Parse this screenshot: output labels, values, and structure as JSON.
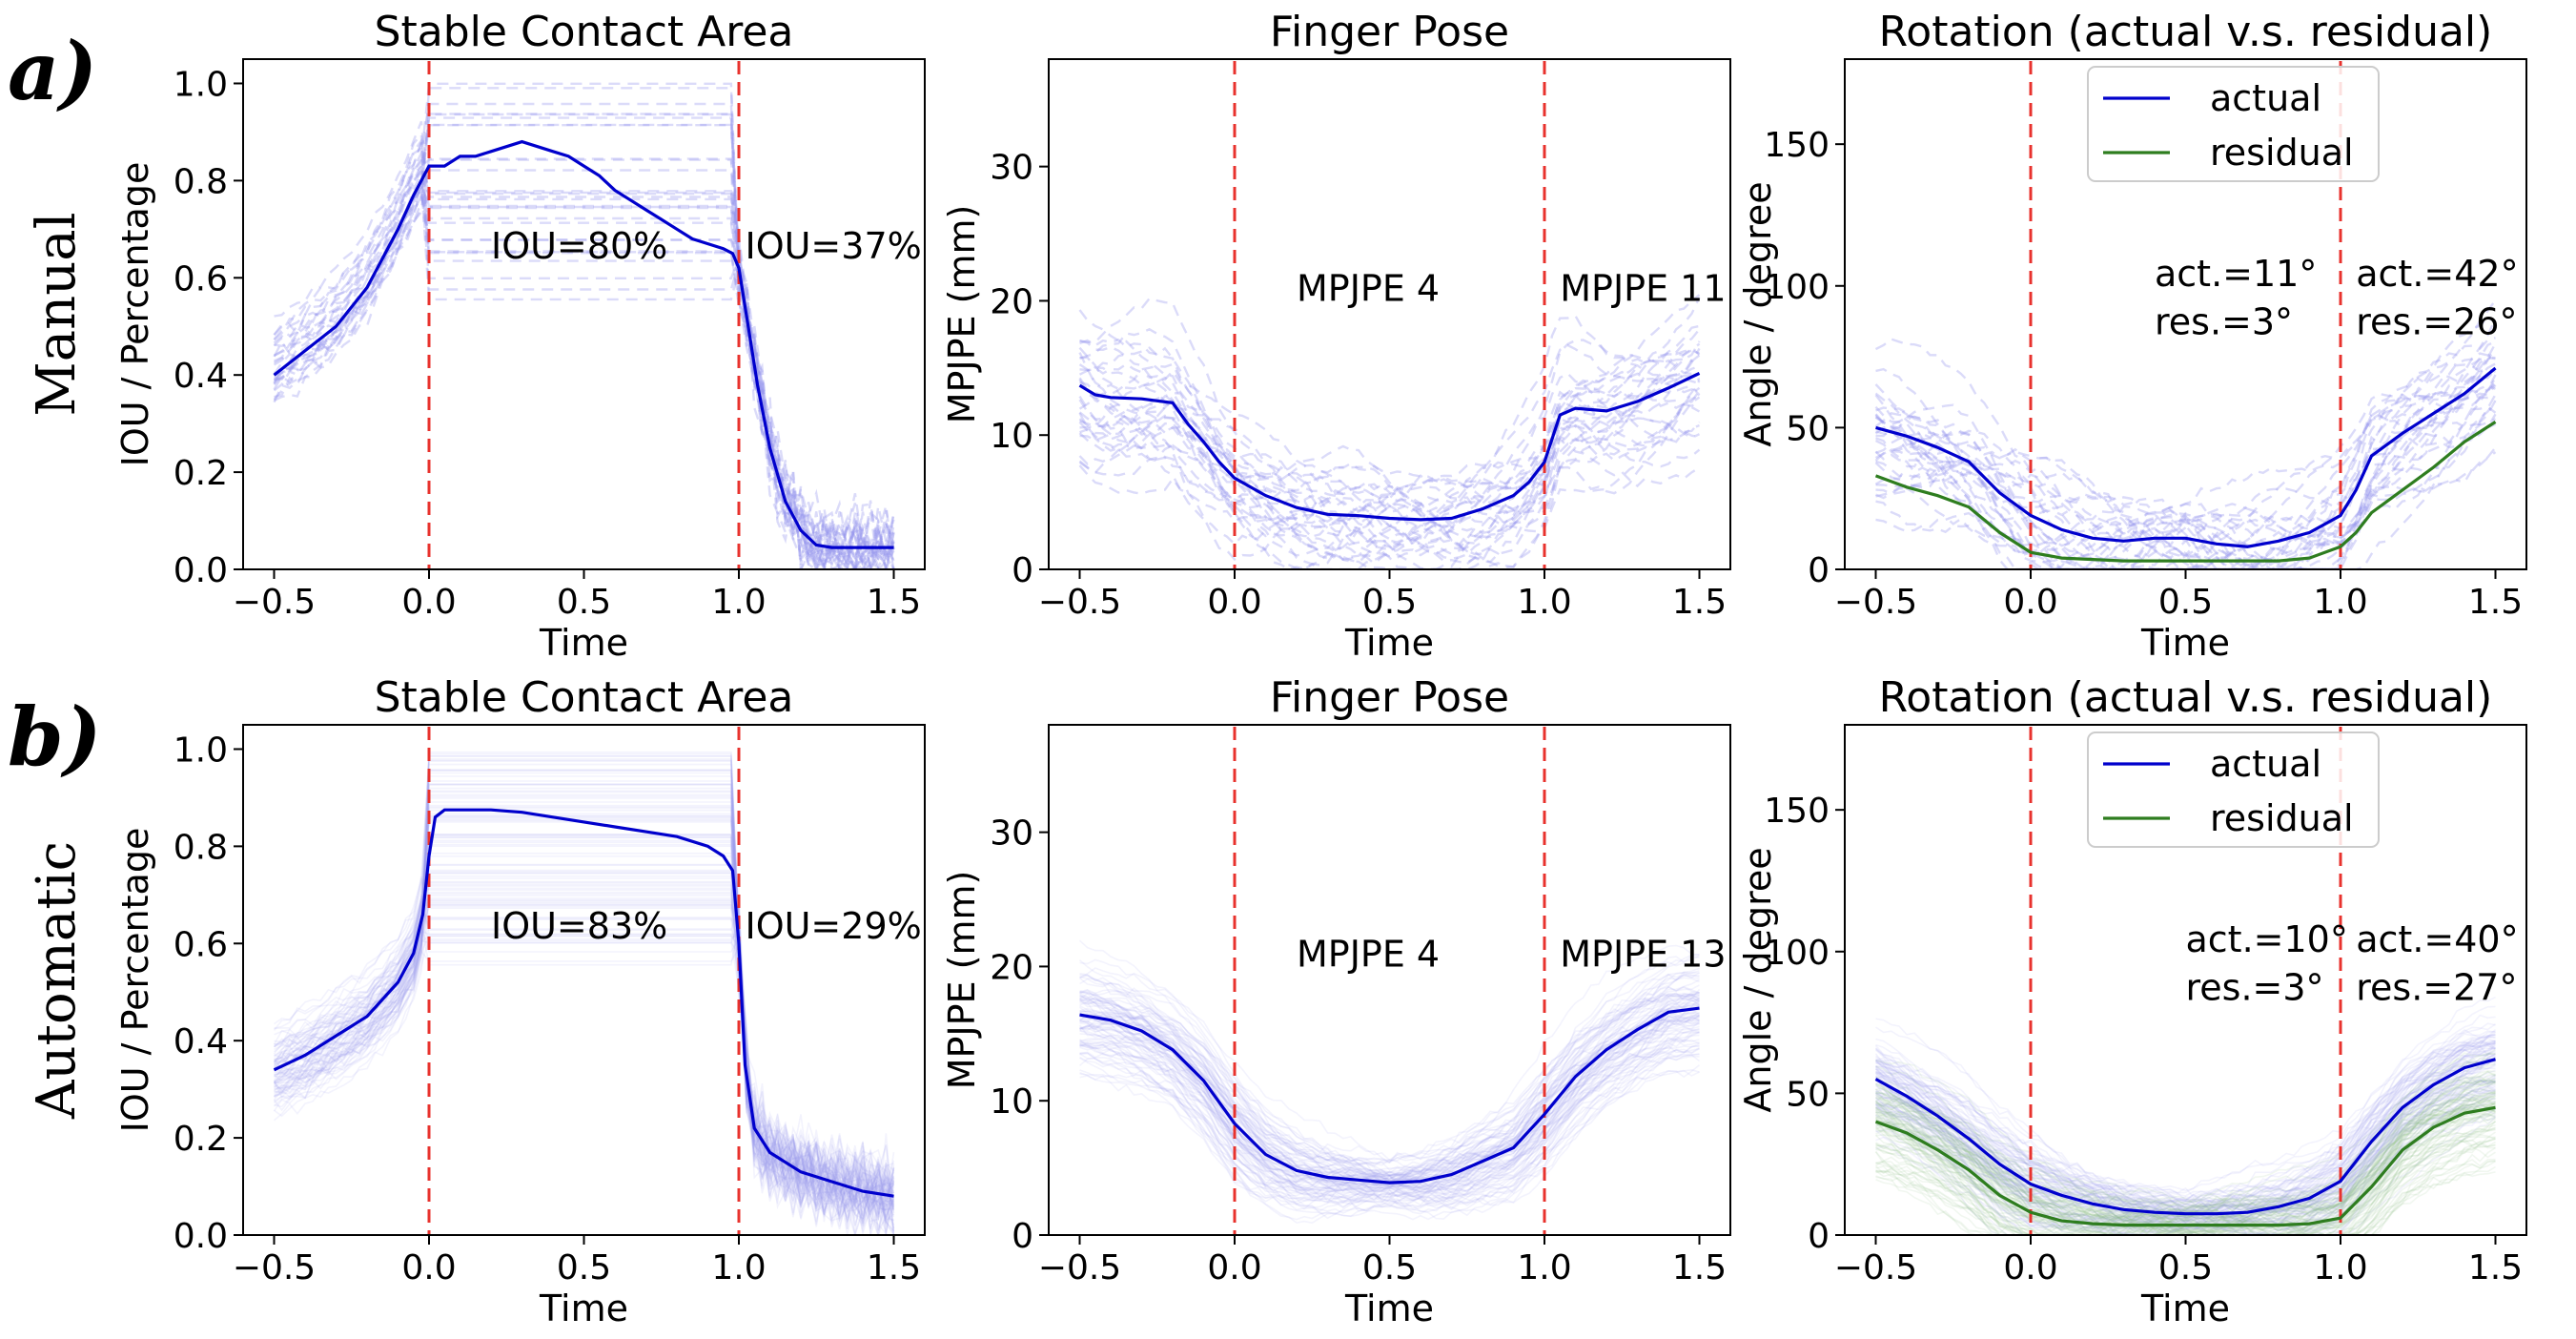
{
  "rows": [
    {
      "letter": "a)",
      "name": "Manual"
    },
    {
      "letter": "b)",
      "name": "Automatic"
    }
  ],
  "colors": {
    "actual": "#0000cc",
    "residual": "#2e7d1f",
    "event_line": "#e8322d",
    "trials_blue": "#9999ee",
    "trials_green": "#8fbf80"
  },
  "chart_data": [
    {
      "id": "a-contact",
      "type": "line",
      "row": 0,
      "col": 0,
      "title": "Stable Contact Area",
      "xlabel": "Time",
      "ylabel": "IOU / Percentage",
      "xlim": [
        -0.6,
        1.6
      ],
      "ylim": [
        0,
        1.05
      ],
      "xticks": [
        -0.5,
        0.0,
        0.5,
        1.0,
        1.5
      ],
      "xticklabels": [
        "−0.5",
        "0.0",
        "0.5",
        "1.0",
        "1.5"
      ],
      "yticks": [
        0,
        0.2,
        0.4,
        0.6,
        0.8,
        1.0
      ],
      "yticklabels": [
        "0.0",
        "0.2",
        "0.4",
        "0.6",
        "0.8",
        "1.0"
      ],
      "vlines": [
        0,
        1
      ],
      "series": [
        {
          "name": "mean",
          "color_key": "actual",
          "x": [
            -0.5,
            -0.4,
            -0.3,
            -0.2,
            -0.1,
            -0.05,
            0.0,
            0.05,
            0.1,
            0.15,
            0.2,
            0.25,
            0.3,
            0.35,
            0.4,
            0.45,
            0.5,
            0.55,
            0.6,
            0.65,
            0.7,
            0.75,
            0.8,
            0.85,
            0.9,
            0.95,
            0.98,
            1.0,
            1.03,
            1.06,
            1.1,
            1.15,
            1.2,
            1.25,
            1.3,
            1.4,
            1.5
          ],
          "values": [
            0.4,
            0.45,
            0.5,
            0.58,
            0.7,
            0.77,
            0.83,
            0.83,
            0.85,
            0.85,
            0.86,
            0.87,
            0.88,
            0.87,
            0.86,
            0.85,
            0.83,
            0.81,
            0.78,
            0.76,
            0.74,
            0.72,
            0.7,
            0.68,
            0.67,
            0.66,
            0.65,
            0.62,
            0.5,
            0.38,
            0.25,
            0.14,
            0.08,
            0.05,
            0.045,
            0.045,
            0.045
          ]
        }
      ],
      "trial_style": "dashed",
      "trial_color_key": "trials_blue",
      "annotations": [
        {
          "text": "IOU=80%",
          "x": 0.2,
          "y": 0.64
        },
        {
          "text": "IOU=37%",
          "x": 1.02,
          "y": 0.64
        }
      ]
    },
    {
      "id": "a-pose",
      "type": "line",
      "row": 0,
      "col": 1,
      "title": "Finger Pose",
      "xlabel": "Time",
      "ylabel": "MPJPE (mm)",
      "xlim": [
        -0.6,
        1.6
      ],
      "ylim": [
        0,
        38
      ],
      "xticks": [
        -0.5,
        0.0,
        0.5,
        1.0,
        1.5
      ],
      "xticklabels": [
        "−0.5",
        "0.0",
        "0.5",
        "1.0",
        "1.5"
      ],
      "yticks": [
        0,
        10,
        20,
        30
      ],
      "yticklabels": [
        "0",
        "10",
        "20",
        "30"
      ],
      "vlines": [
        0,
        1
      ],
      "series": [
        {
          "name": "mean",
          "color_key": "actual",
          "x": [
            -0.5,
            -0.45,
            -0.4,
            -0.3,
            -0.2,
            -0.15,
            -0.1,
            -0.05,
            0.0,
            0.1,
            0.2,
            0.3,
            0.4,
            0.5,
            0.6,
            0.7,
            0.8,
            0.9,
            0.95,
            1.0,
            1.05,
            1.1,
            1.2,
            1.3,
            1.4,
            1.5
          ],
          "values": [
            13.7,
            13.0,
            12.8,
            12.7,
            12.4,
            10.8,
            9.5,
            8.0,
            6.8,
            5.5,
            4.6,
            4.1,
            4.0,
            3.8,
            3.7,
            3.8,
            4.5,
            5.5,
            6.5,
            8.0,
            11.5,
            12.0,
            11.8,
            12.5,
            13.5,
            14.6
          ]
        }
      ],
      "trial_style": "dashed",
      "trial_color_key": "trials_blue",
      "annotations": [
        {
          "text": "MPJPE 4",
          "x": 0.2,
          "y": 20.0
        },
        {
          "text": "MPJPE 11",
          "x": 1.05,
          "y": 20.0
        }
      ]
    },
    {
      "id": "a-rot",
      "type": "line",
      "row": 0,
      "col": 2,
      "title": "Rotation (actual v.s. residual)",
      "xlabel": "Time",
      "ylabel": "Angle / degree",
      "xlim": [
        -0.6,
        1.6
      ],
      "ylim": [
        0,
        180
      ],
      "xticks": [
        -0.5,
        0.0,
        0.5,
        1.0,
        1.5
      ],
      "xticklabels": [
        "−0.5",
        "0.0",
        "0.5",
        "1.0",
        "1.5"
      ],
      "yticks": [
        0,
        50,
        100,
        150
      ],
      "yticklabels": [
        "0",
        "50",
        "100",
        "150"
      ],
      "vlines": [
        0,
        1
      ],
      "series": [
        {
          "name": "actual",
          "color_key": "actual",
          "x": [
            -0.5,
            -0.4,
            -0.3,
            -0.2,
            -0.1,
            0.0,
            0.1,
            0.2,
            0.3,
            0.4,
            0.5,
            0.6,
            0.7,
            0.8,
            0.9,
            1.0,
            1.05,
            1.1,
            1.2,
            1.3,
            1.4,
            1.5
          ],
          "values": [
            50,
            47,
            43,
            38,
            27,
            19,
            14,
            11,
            10,
            11,
            11,
            9,
            8,
            10,
            13,
            19,
            28,
            40,
            48,
            55,
            62,
            71
          ]
        },
        {
          "name": "residual",
          "color_key": "residual",
          "x": [
            -0.5,
            -0.4,
            -0.3,
            -0.2,
            -0.1,
            0.0,
            0.1,
            0.2,
            0.3,
            0.4,
            0.5,
            0.6,
            0.7,
            0.8,
            0.9,
            1.0,
            1.05,
            1.1,
            1.2,
            1.3,
            1.4,
            1.5
          ],
          "values": [
            33,
            29,
            26,
            22,
            13,
            6,
            4,
            3.5,
            3,
            3,
            3,
            3,
            3,
            3,
            4,
            8,
            13,
            20,
            28,
            36,
            45,
            52
          ]
        }
      ],
      "trial_style": "dashed",
      "trial_color_key": "trials_blue",
      "legend": {
        "placement": "top-center",
        "entries": [
          {
            "label": "actual",
            "color_key": "actual"
          },
          {
            "label": "residual",
            "color_key": "residual"
          }
        ]
      },
      "annotations": [
        {
          "text": "act.=11°",
          "x": 0.4,
          "y": 100
        },
        {
          "text": "res.=3°",
          "x": 0.4,
          "y": 83
        },
        {
          "text": "act.=42°",
          "x": 1.05,
          "y": 100
        },
        {
          "text": "res.=26°",
          "x": 1.05,
          "y": 83
        }
      ]
    },
    {
      "id": "b-contact",
      "type": "line",
      "row": 1,
      "col": 0,
      "title": "Stable Contact Area",
      "xlabel": "Time",
      "ylabel": "IOU / Percentage",
      "xlim": [
        -0.6,
        1.6
      ],
      "ylim": [
        0,
        1.05
      ],
      "xticks": [
        -0.5,
        0.0,
        0.5,
        1.0,
        1.5
      ],
      "xticklabels": [
        "−0.5",
        "0.0",
        "0.5",
        "1.0",
        "1.5"
      ],
      "yticks": [
        0,
        0.2,
        0.4,
        0.6,
        0.8,
        1.0
      ],
      "yticklabels": [
        "0.0",
        "0.2",
        "0.4",
        "0.6",
        "0.8",
        "1.0"
      ],
      "vlines": [
        0,
        1
      ],
      "series": [
        {
          "name": "mean",
          "color_key": "actual",
          "x": [
            -0.5,
            -0.4,
            -0.3,
            -0.2,
            -0.1,
            -0.05,
            -0.02,
            0.0,
            0.02,
            0.05,
            0.1,
            0.2,
            0.3,
            0.4,
            0.5,
            0.6,
            0.7,
            0.8,
            0.9,
            0.95,
            0.98,
            1.0,
            1.02,
            1.05,
            1.1,
            1.2,
            1.3,
            1.4,
            1.5
          ],
          "values": [
            0.34,
            0.37,
            0.41,
            0.45,
            0.52,
            0.58,
            0.66,
            0.78,
            0.86,
            0.875,
            0.875,
            0.875,
            0.87,
            0.86,
            0.85,
            0.84,
            0.83,
            0.82,
            0.8,
            0.78,
            0.75,
            0.6,
            0.35,
            0.22,
            0.17,
            0.13,
            0.11,
            0.09,
            0.08
          ]
        }
      ],
      "trial_style": "faint",
      "trial_color_key": "trials_blue",
      "annotations": [
        {
          "text": "IOU=83%",
          "x": 0.2,
          "y": 0.61
        },
        {
          "text": "IOU=29%",
          "x": 1.02,
          "y": 0.61
        }
      ]
    },
    {
      "id": "b-pose",
      "type": "line",
      "row": 1,
      "col": 1,
      "title": "Finger Pose",
      "xlabel": "Time",
      "ylabel": "MPJPE (mm)",
      "xlim": [
        -0.6,
        1.6
      ],
      "ylim": [
        0,
        38
      ],
      "xticks": [
        -0.5,
        0.0,
        0.5,
        1.0,
        1.5
      ],
      "xticklabels": [
        "−0.5",
        "0.0",
        "0.5",
        "1.0",
        "1.5"
      ],
      "yticks": [
        0,
        10,
        20,
        30
      ],
      "yticklabels": [
        "0",
        "10",
        "20",
        "30"
      ],
      "vlines": [
        0,
        1
      ],
      "series": [
        {
          "name": "mean",
          "color_key": "actual",
          "x": [
            -0.5,
            -0.4,
            -0.3,
            -0.2,
            -0.1,
            0.0,
            0.1,
            0.2,
            0.3,
            0.4,
            0.5,
            0.6,
            0.7,
            0.8,
            0.9,
            1.0,
            1.1,
            1.2,
            1.3,
            1.4,
            1.5
          ],
          "values": [
            16.4,
            16.0,
            15.2,
            13.8,
            11.5,
            8.3,
            6.0,
            4.8,
            4.3,
            4.1,
            3.9,
            4.0,
            4.5,
            5.5,
            6.5,
            9.0,
            11.8,
            13.8,
            15.3,
            16.6,
            16.9
          ]
        }
      ],
      "trial_style": "faint",
      "trial_color_key": "trials_blue",
      "annotations": [
        {
          "text": "MPJPE 4",
          "x": 0.2,
          "y": 20.0
        },
        {
          "text": "MPJPE 13",
          "x": 1.05,
          "y": 20.0
        }
      ]
    },
    {
      "id": "b-rot",
      "type": "line",
      "row": 1,
      "col": 2,
      "title": "Rotation (actual v.s. residual)",
      "xlabel": "Time",
      "ylabel": "Angle / degree",
      "xlim": [
        -0.6,
        1.6
      ],
      "ylim": [
        0,
        180
      ],
      "xticks": [
        -0.5,
        0.0,
        0.5,
        1.0,
        1.5
      ],
      "xticklabels": [
        "−0.5",
        "0.0",
        "0.5",
        "1.0",
        "1.5"
      ],
      "yticks": [
        0,
        50,
        100,
        150
      ],
      "yticklabels": [
        "0",
        "50",
        "100",
        "150"
      ],
      "vlines": [
        0,
        1
      ],
      "series": [
        {
          "name": "actual",
          "color_key": "actual",
          "x": [
            -0.5,
            -0.4,
            -0.3,
            -0.2,
            -0.1,
            0.0,
            0.1,
            0.2,
            0.3,
            0.4,
            0.5,
            0.6,
            0.7,
            0.8,
            0.9,
            1.0,
            1.1,
            1.2,
            1.3,
            1.4,
            1.5
          ],
          "values": [
            55,
            49,
            42,
            34,
            25,
            18,
            14,
            11,
            9,
            8,
            7.5,
            7.5,
            8,
            10,
            13,
            19,
            33,
            45,
            53,
            59,
            62
          ]
        },
        {
          "name": "residual",
          "color_key": "residual",
          "x": [
            -0.5,
            -0.4,
            -0.3,
            -0.2,
            -0.1,
            0.0,
            0.1,
            0.2,
            0.3,
            0.4,
            0.5,
            0.6,
            0.7,
            0.8,
            0.9,
            1.0,
            1.1,
            1.2,
            1.3,
            1.4,
            1.5
          ],
          "values": [
            40,
            36,
            30,
            23,
            14,
            8,
            5,
            4,
            3.5,
            3.5,
            3.5,
            3.5,
            3.5,
            3.5,
            4,
            6,
            17,
            30,
            38,
            43,
            45
          ]
        }
      ],
      "trial_style": "faint",
      "trial_color_key": "trials_green",
      "legend": {
        "placement": "top-center",
        "entries": [
          {
            "label": "actual",
            "color_key": "actual"
          },
          {
            "label": "residual",
            "color_key": "residual"
          }
        ]
      },
      "annotations": [
        {
          "text": "act.=10°",
          "x": 0.5,
          "y": 100
        },
        {
          "text": "res.=3°",
          "x": 0.5,
          "y": 83
        },
        {
          "text": "act.=40°",
          "x": 1.05,
          "y": 100
        },
        {
          "text": "res.=27°",
          "x": 1.05,
          "y": 83
        }
      ]
    }
  ]
}
